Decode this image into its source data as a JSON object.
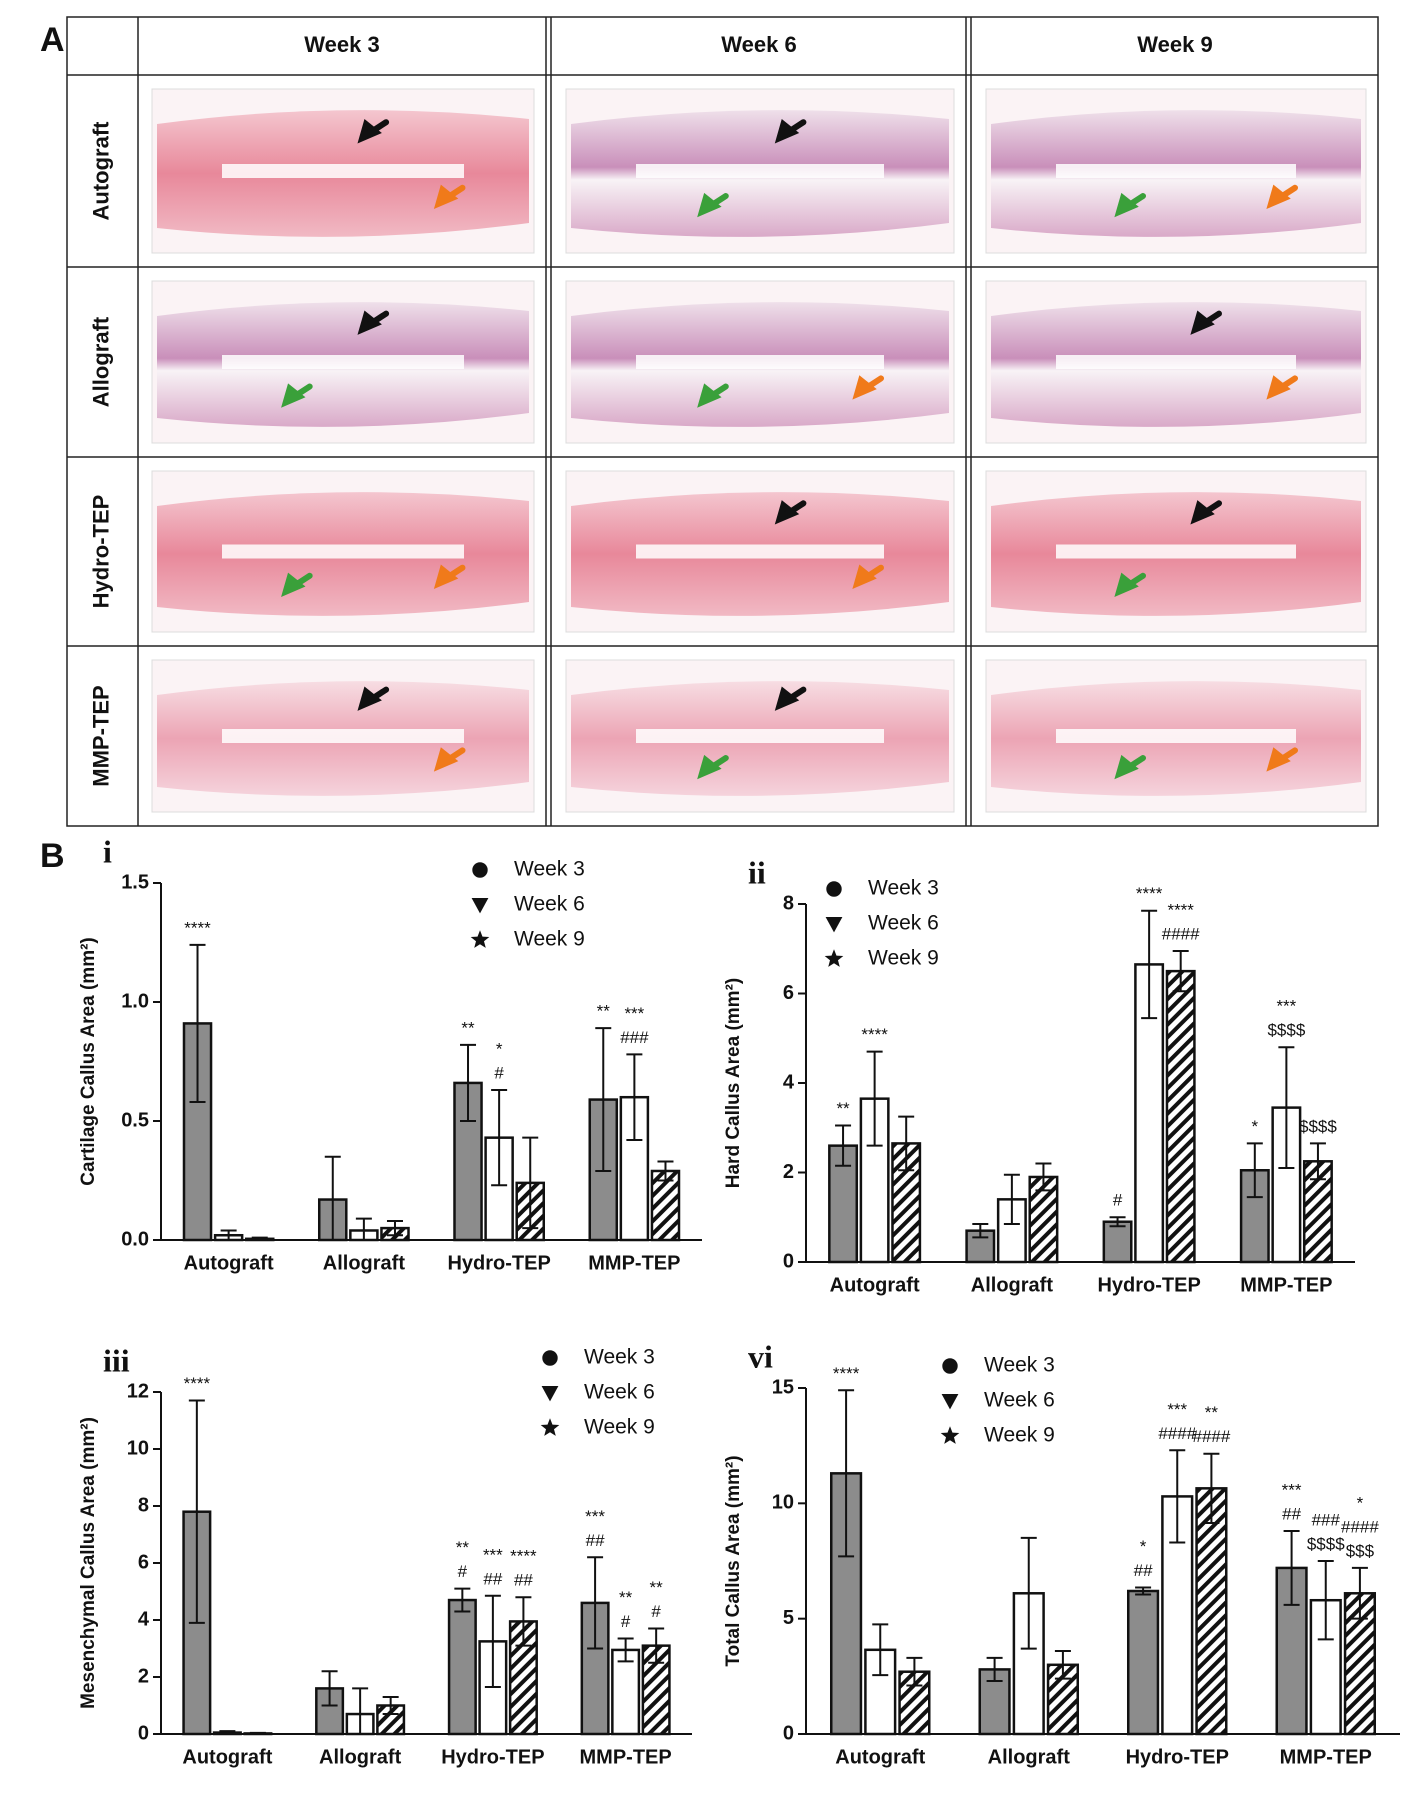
{
  "panel_a": {
    "label": "A",
    "columns": [
      "Week 3",
      "Week 6",
      "Week 9"
    ],
    "rows": [
      "Autograft",
      "Allograft",
      "Hydro-TEP",
      "MMP-TEP"
    ]
  },
  "panel_b_label": "B",
  "chart_data": [
    {
      "type": "bar",
      "panel": "i",
      "y_label": "Cartilage Callus Area (mm²)",
      "categories": [
        "Autograft",
        "Allograft",
        "Hydro-TEP",
        "MMP-TEP"
      ],
      "ylim": [
        0,
        1.5
      ],
      "yticks": [
        {
          "value": 0,
          "label": "0.0"
        },
        0.5,
        {
          "value": 1,
          "label": "1.0"
        },
        1.5
      ],
      "series": [
        {
          "name": "Week 3",
          "color": "#8c8c8c",
          "marker": "circle",
          "values": [
            0.91,
            0.17,
            0.66,
            0.59
          ],
          "errors": [
            0.33,
            0.18,
            0.16,
            0.3
          ],
          "annotations": [
            [
              "****"
            ],
            null,
            [
              "**"
            ],
            [
              "**"
            ]
          ]
        },
        {
          "name": "Week 6",
          "color": "#ffffff",
          "marker": "triangle",
          "values": [
            0.02,
            0.04,
            0.43,
            0.6
          ],
          "errors": [
            0.02,
            0.05,
            0.2,
            0.18
          ],
          "annotations": [
            null,
            null,
            [
              "*",
              "#"
            ],
            [
              "***",
              "###"
            ]
          ]
        },
        {
          "name": "Week 9",
          "color": "#ffffff",
          "hatch": true,
          "marker": "star",
          "values": [
            0.005,
            0.05,
            0.24,
            0.29
          ],
          "errors": [
            0.005,
            0.03,
            0.19,
            0.04
          ],
          "annotations": [
            null,
            null,
            null,
            null
          ]
        }
      ]
    },
    {
      "type": "bar",
      "panel": "ii",
      "y_label": "Hard Callus Area (mm²)",
      "categories": [
        "Autograft",
        "Allograft",
        "Hydro-TEP",
        "MMP-TEP"
      ],
      "ylim": [
        0,
        8
      ],
      "yticks": [
        0,
        2,
        4,
        6,
        8
      ],
      "series": [
        {
          "name": "Week 3",
          "color": "#8c8c8c",
          "marker": "circle",
          "values": [
            2.6,
            0.7,
            0.9,
            2.05
          ],
          "errors": [
            0.45,
            0.15,
            0.1,
            0.6
          ],
          "annotations": [
            [
              "**"
            ],
            null,
            [
              "#"
            ],
            [
              "*"
            ]
          ]
        },
        {
          "name": "Week 6",
          "color": "#ffffff",
          "marker": "triangle",
          "values": [
            3.65,
            1.4,
            6.65,
            3.45
          ],
          "errors": [
            1.05,
            0.55,
            1.2,
            1.35
          ],
          "annotations": [
            [
              "****"
            ],
            null,
            [
              "****"
            ],
            [
              "***",
              "$$$$"
            ]
          ]
        },
        {
          "name": "Week 9",
          "color": "#ffffff",
          "hatch": true,
          "marker": "star",
          "values": [
            2.65,
            1.9,
            6.5,
            2.25
          ],
          "errors": [
            0.6,
            0.3,
            0.45,
            0.4
          ],
          "annotations": [
            null,
            null,
            [
              "****",
              "####"
            ],
            [
              "$$$$"
            ]
          ]
        }
      ]
    },
    {
      "type": "bar",
      "panel": "iii",
      "y_label": "Mesenchymal Callus Area (mm²)",
      "categories": [
        "Autograft",
        "Allograft",
        "Hydro-TEP",
        "MMP-TEP"
      ],
      "ylim": [
        0,
        12
      ],
      "yticks": [
        0,
        2,
        4,
        6,
        8,
        10,
        12
      ],
      "series": [
        {
          "name": "Week 3",
          "color": "#8c8c8c",
          "marker": "circle",
          "values": [
            7.8,
            1.6,
            4.7,
            4.6
          ],
          "errors": [
            3.9,
            0.6,
            0.4,
            1.6
          ],
          "annotations": [
            [
              "****"
            ],
            null,
            [
              "**",
              "#"
            ],
            [
              "***",
              "##"
            ]
          ]
        },
        {
          "name": "Week 6",
          "color": "#ffffff",
          "marker": "triangle",
          "values": [
            0.05,
            0.7,
            3.25,
            2.95
          ],
          "errors": [
            0.05,
            0.9,
            1.6,
            0.4
          ],
          "annotations": [
            null,
            null,
            [
              "***",
              "##"
            ],
            [
              "**",
              "#"
            ]
          ]
        },
        {
          "name": "Week 9",
          "color": "#ffffff",
          "hatch": true,
          "marker": "star",
          "values": [
            0.02,
            1,
            3.95,
            3.1
          ],
          "errors": [
            0.02,
            0.3,
            0.85,
            0.6
          ],
          "annotations": [
            null,
            null,
            [
              "****",
              "##"
            ],
            [
              "**",
              "#"
            ]
          ]
        }
      ]
    },
    {
      "type": "bar",
      "panel": "vi",
      "y_label": "Total Callus Area (mm²)",
      "categories": [
        "Autograft",
        "Allograft",
        "Hydro-TEP",
        "MMP-TEP"
      ],
      "ylim": [
        0,
        15
      ],
      "yticks": [
        0,
        5,
        10,
        15
      ],
      "series": [
        {
          "name": "Week 3",
          "color": "#8c8c8c",
          "marker": "circle",
          "values": [
            11.3,
            2.8,
            6.2,
            7.2
          ],
          "errors": [
            3.6,
            0.5,
            0.15,
            1.6
          ],
          "annotations": [
            [
              "****"
            ],
            null,
            [
              "*",
              "##"
            ],
            [
              "***",
              "##"
            ]
          ]
        },
        {
          "name": "Week 6",
          "color": "#ffffff",
          "marker": "triangle",
          "values": [
            3.65,
            6.1,
            10.3,
            5.8
          ],
          "errors": [
            1.1,
            2.4,
            2,
            1.7
          ],
          "annotations": [
            null,
            null,
            [
              "***",
              "####"
            ],
            [
              "###",
              "$$$$"
            ]
          ]
        },
        {
          "name": "Week 9",
          "color": "#ffffff",
          "hatch": true,
          "marker": "star",
          "values": [
            2.7,
            3,
            10.65,
            6.1
          ],
          "errors": [
            0.6,
            0.6,
            1.5,
            1.1
          ],
          "annotations": [
            null,
            null,
            [
              "**",
              "####"
            ],
            [
              "*",
              "####",
              "$$$"
            ]
          ]
        }
      ]
    }
  ]
}
